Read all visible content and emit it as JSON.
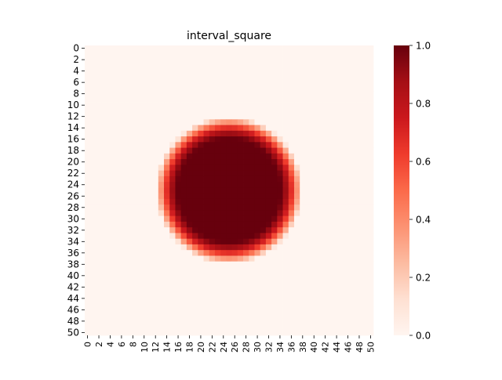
{
  "chart_data": {
    "type": "heatmap",
    "title": "interval_square",
    "xlabel": "",
    "ylabel": "",
    "rows": 51,
    "cols": 51,
    "x_ticks": [
      "0",
      "2",
      "4",
      "6",
      "8",
      "10",
      "12",
      "14",
      "16",
      "18",
      "20",
      "22",
      "24",
      "26",
      "28",
      "30",
      "32",
      "34",
      "36",
      "38",
      "40",
      "42",
      "44",
      "46",
      "48",
      "50"
    ],
    "y_ticks": [
      "0",
      "2",
      "4",
      "6",
      "8",
      "10",
      "12",
      "14",
      "16",
      "18",
      "20",
      "22",
      "24",
      "26",
      "28",
      "30",
      "32",
      "34",
      "36",
      "38",
      "40",
      "42",
      "44",
      "46",
      "48",
      "50"
    ],
    "colormap": "Reds",
    "vmin": 0.0,
    "vmax": 1.0,
    "colorbar_ticks": [
      "0.0",
      "0.2",
      "0.4",
      "0.6",
      "0.8",
      "1.0"
    ],
    "pattern": {
      "shape": "disk",
      "center_row": 25,
      "center_col": 25,
      "peak_value": 1.0,
      "full_value_radius": 9.0,
      "edge_radius": 13.0,
      "background_value": 0.0
    },
    "colors": {
      "low": "#fff5f0",
      "mid": "#fb6a4a",
      "high": "#67000d"
    }
  }
}
